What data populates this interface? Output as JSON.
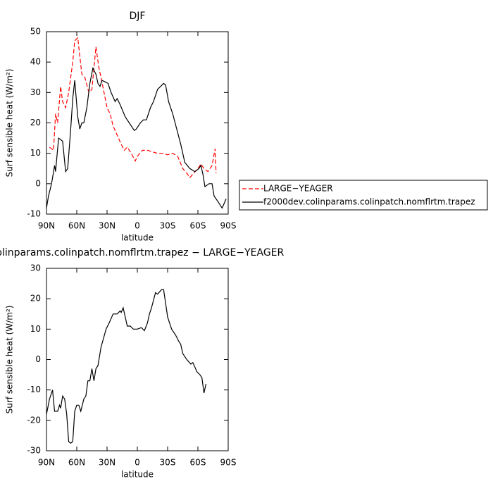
{
  "chart_data": [
    {
      "type": "line",
      "title": "DJF",
      "ylabel": "Surf sensible heat (W/m²)",
      "xlabel": "latitude",
      "xlim": [
        90,
        -90
      ],
      "ylim": [
        -10,
        50
      ],
      "xticks": [
        {
          "value": 90,
          "label": "90N"
        },
        {
          "value": 60,
          "label": "60N"
        },
        {
          "value": 30,
          "label": "30N"
        },
        0,
        {
          "value": -30,
          "label": "30S"
        },
        {
          "value": -60,
          "label": "60S"
        },
        {
          "value": -90,
          "label": "90S"
        }
      ],
      "yticks": [
        -10,
        0,
        10,
        20,
        30,
        40,
        50
      ],
      "series": [
        {
          "name": "LARGE−YEAGER",
          "color": "#ff0000",
          "dash": true,
          "x": [
            87,
            85,
            83,
            81,
            79,
            76,
            74,
            71,
            68,
            64,
            62,
            59,
            57,
            55,
            52,
            48,
            45,
            41,
            38,
            36,
            33,
            30,
            27,
            24,
            20,
            16,
            13,
            10,
            6,
            2,
            0,
            -5,
            -10,
            -15,
            -20,
            -25,
            -30,
            -35,
            -40,
            -45,
            -50,
            -52,
            -56,
            -60,
            -63,
            -66,
            -70,
            -74,
            -77,
            -78
          ],
          "values": [
            12,
            11.5,
            11,
            23,
            20,
            32,
            27,
            25,
            30,
            40,
            47,
            48,
            42,
            36,
            35,
            30,
            31,
            45,
            38,
            35,
            30,
            25,
            23,
            19,
            16,
            13,
            11,
            12,
            10,
            7.5,
            9,
            11,
            11,
            10.5,
            10,
            10,
            9.5,
            10,
            9,
            5,
            3,
            2,
            3.5,
            5,
            6.5,
            5,
            4,
            6,
            11.5,
            3.5
          ]
        },
        {
          "name": "f2000dev.colinparams.colinpatch.nomflrtm.trapez",
          "color": "#000000",
          "dash": false,
          "x": [
            90,
            88,
            85,
            82,
            81,
            78,
            74,
            71,
            69,
            66,
            64,
            62,
            59,
            57,
            55,
            53,
            50,
            47,
            44,
            41,
            39,
            37,
            35,
            32,
            29,
            26,
            22,
            20,
            17,
            12,
            8,
            3,
            1,
            -3,
            -6,
            -9,
            -13,
            -16,
            -20,
            -23,
            -26,
            -28,
            -31,
            -35,
            -39,
            -43,
            -47,
            -52,
            -57,
            -61,
            -63,
            -65,
            -67,
            -71,
            -74,
            -76,
            -80,
            -84,
            -88
          ],
          "values": [
            -8,
            -4,
            0,
            6,
            4,
            15,
            14,
            4,
            5,
            18,
            28,
            34,
            22,
            18,
            20,
            20,
            25,
            33,
            38,
            36,
            33,
            32,
            34,
            33.5,
            33,
            30,
            27,
            28,
            26,
            22,
            20,
            17.5,
            18,
            20,
            21,
            21,
            25,
            27,
            31,
            32,
            33,
            32.5,
            27,
            23,
            18,
            13,
            7,
            5,
            4,
            5,
            6,
            3,
            -1,
            0,
            0,
            -4,
            -6,
            -8,
            -5
          ]
        }
      ]
    },
    {
      "type": "line",
      "title": "colinparams.colinpatch.nomflrtm.trapez − LARGE−YEAGER",
      "ylabel": "Surf sensible heat (W/m²)",
      "xlabel": "latitude",
      "xlim": [
        90,
        -90
      ],
      "ylim": [
        -30,
        30
      ],
      "xticks": [
        {
          "value": 90,
          "label": "90N"
        },
        {
          "value": 60,
          "label": "60N"
        },
        {
          "value": 30,
          "label": "30N"
        },
        0,
        {
          "value": -30,
          "label": "30S"
        },
        {
          "value": -60,
          "label": "60S"
        },
        {
          "value": -90,
          "label": "90S"
        }
      ],
      "yticks": [
        -30,
        -20,
        -10,
        0,
        10,
        20,
        30
      ],
      "series": [
        {
          "color": "#000000",
          "dash": false,
          "x": [
            90,
            87,
            84,
            82,
            79,
            77,
            76,
            74,
            72,
            70,
            68,
            66,
            64,
            62,
            60,
            58,
            56,
            53,
            51,
            49,
            47,
            45,
            43,
            41,
            39,
            36,
            31,
            28,
            24,
            20,
            17,
            16,
            14,
            12,
            10,
            7,
            4,
            0,
            -4,
            -7,
            -10,
            -12,
            -14,
            -18,
            -20,
            -24,
            -26,
            -30,
            -31,
            -34,
            -38,
            -41,
            -43,
            -45,
            -49,
            -53,
            -55,
            -59,
            -62,
            -64,
            -66,
            -68
          ],
          "values": [
            -18,
            -13,
            -10,
            -17,
            -17,
            -15,
            -16,
            -12,
            -13,
            -18,
            -27,
            -27.5,
            -27,
            -17,
            -15,
            -15,
            -17,
            -13,
            -12,
            -7,
            -7,
            -3,
            -7,
            -3,
            -2,
            4,
            10,
            12,
            15,
            15,
            16,
            15.5,
            17,
            14,
            11,
            11,
            10,
            10,
            10.5,
            9.5,
            12,
            15,
            17,
            22,
            21.5,
            23,
            23,
            14,
            13,
            10,
            8,
            6,
            5,
            2,
            0,
            -1.5,
            -1,
            -4,
            -5,
            -6,
            -11,
            -8
          ]
        }
      ]
    }
  ]
}
